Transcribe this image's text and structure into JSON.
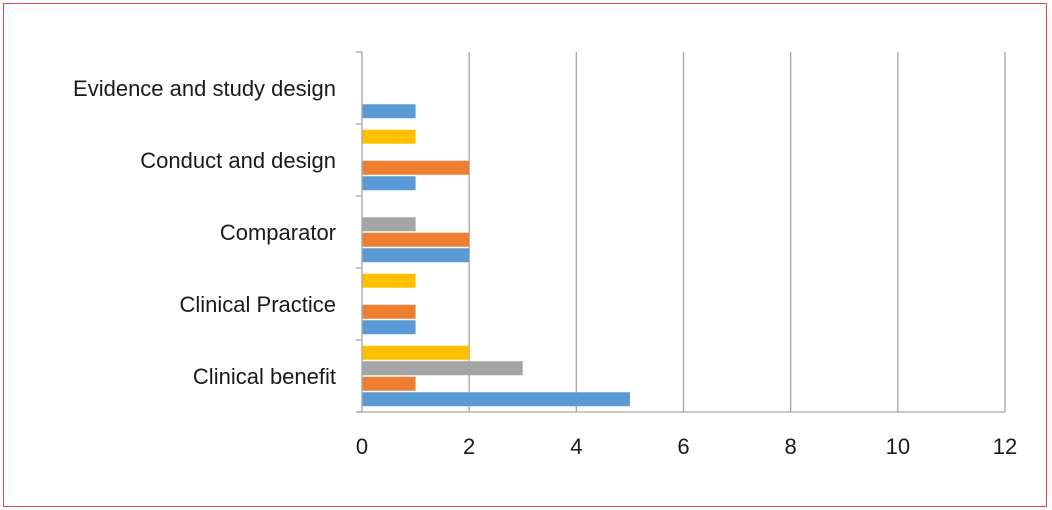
{
  "chart_data": {
    "type": "bar",
    "orientation": "horizontal",
    "categories": [
      "Clinical benefit",
      "Clinical Practice",
      "Comparator",
      "Conduct and design",
      "Evidence and study design"
    ],
    "series": [
      {
        "color": "#5b9bd5",
        "values": [
          5,
          1,
          2,
          1,
          1
        ]
      },
      {
        "color": "#ed7d31",
        "values": [
          1,
          1,
          2,
          2,
          0
        ]
      },
      {
        "color": "#a5a5a5",
        "values": [
          3,
          0,
          1,
          0,
          0
        ]
      },
      {
        "color": "#ffc000",
        "values": [
          2,
          1,
          0,
          1,
          0
        ]
      }
    ],
    "xlim": [
      0,
      12
    ],
    "xticks": [
      0,
      2,
      4,
      6,
      8,
      10,
      12
    ],
    "title": "",
    "xlabel": "",
    "ylabel": "",
    "grid": "vertical",
    "legend": "none"
  },
  "colors": {
    "frame": "#e0484c",
    "grid": "#a6a6a6",
    "axis": "#a6a6a6"
  }
}
